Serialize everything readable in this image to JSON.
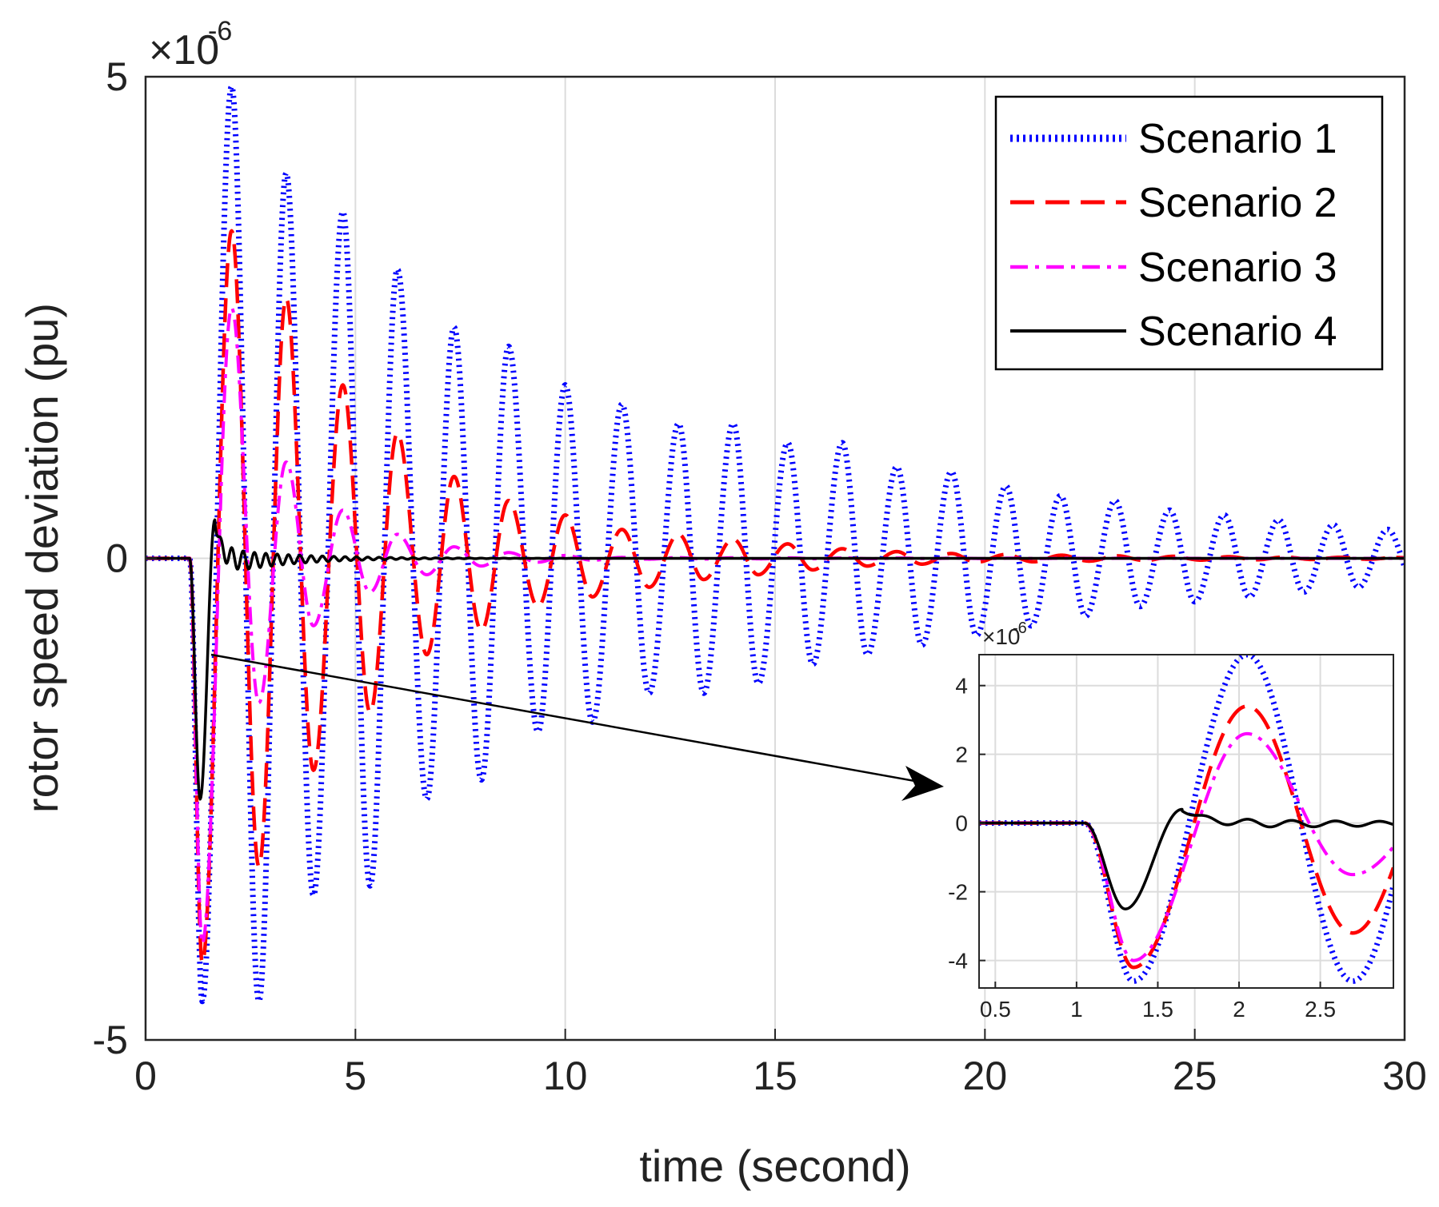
{
  "chart_data": [
    {
      "id": "main",
      "type": "line",
      "xlabel": "time (second)",
      "ylabel": "rotor speed deviation (pu)",
      "xlim": [
        0,
        30
      ],
      "ylim": [
        -5e-06,
        5e-06
      ],
      "y_exponent_label": "×10",
      "y_exponent_power": "-6",
      "x_ticks": [
        0,
        5,
        10,
        15,
        20,
        25,
        30
      ],
      "x_tick_labels": [
        "0",
        "5",
        "10",
        "15",
        "20",
        "25",
        "30"
      ],
      "y_ticks": [
        -5,
        0,
        5
      ],
      "y_tick_labels": [
        "-5",
        "0",
        "5"
      ],
      "grid": true,
      "legend_position": "top-right",
      "series": [
        {
          "name": "Scenario 1",
          "color": "#0000ff",
          "style": "dotted",
          "onset_time": 1.05,
          "period": 1.33,
          "peak_times": [
            2.05,
            3.35,
            4.7,
            6.0,
            7.35,
            8.65,
            10.0,
            11.35,
            12.7,
            14.0,
            15.3,
            16.6,
            17.9,
            19.2,
            20.5,
            21.8,
            23.1,
            24.4,
            25.7,
            27.0,
            28.3,
            29.6
          ],
          "peak_values": [
            4.9e-06,
            4e-06,
            3.6e-06,
            3e-06,
            2.4e-06,
            2.2e-06,
            1.8e-06,
            1.6e-06,
            1.4e-06,
            1.4e-06,
            1.2e-06,
            1.2e-06,
            9.5e-07,
            9e-07,
            7.5e-07,
            6.5e-07,
            6e-07,
            5e-07,
            4.5e-07,
            4e-07,
            3.5e-07,
            3e-07
          ],
          "trough_times": [
            1.35,
            2.7,
            4.0,
            5.35,
            6.7,
            8.0,
            9.35,
            10.65,
            12.0,
            13.3,
            14.6,
            15.9,
            17.2,
            18.5,
            19.8,
            21.1,
            22.4,
            23.7,
            25.0,
            26.3,
            27.6,
            28.9
          ],
          "trough_values": [
            -4.6e-06,
            -4.6e-06,
            -3.5e-06,
            -3.4e-06,
            -2.5e-06,
            -2.3e-06,
            -1.8e-06,
            -1.7e-06,
            -1.4e-06,
            -1.4e-06,
            -1.3e-06,
            -1.1e-06,
            -1e-06,
            -9e-07,
            -8e-07,
            -7e-07,
            -6e-07,
            -5e-07,
            -4.5e-07,
            -4e-07,
            -3.5e-07,
            -3e-07
          ]
        },
        {
          "name": "Scenario 2",
          "color": "#ff0000",
          "style": "dashed",
          "onset_time": 1.05,
          "period": 1.33,
          "peak_times": [
            2.05,
            3.35,
            4.7,
            6.0,
            7.35,
            8.65,
            10.0,
            11.35,
            12.7,
            14.0,
            15.3,
            16.6,
            17.9,
            19.2,
            20.5
          ],
          "peak_values": [
            3.4e-06,
            2.7e-06,
            1.8e-06,
            1.3e-06,
            8.5e-07,
            6e-07,
            4.5e-07,
            3e-07,
            2.5e-07,
            2e-07,
            1.5e-07,
            1e-07,
            7e-08,
            5e-08,
            4e-08
          ],
          "trough_times": [
            1.35,
            2.7,
            4.0,
            5.35,
            6.7,
            8.0,
            9.35,
            10.65,
            12.0,
            13.3,
            14.6,
            15.9,
            17.2,
            18.5,
            19.8
          ],
          "trough_values": [
            -4.2e-06,
            -3.2e-06,
            -2.2e-06,
            -1.6e-06,
            -1e-06,
            -7.5e-07,
            -5e-07,
            -4e-07,
            -3e-07,
            -2.2e-07,
            -1.7e-07,
            -1.2e-07,
            -8e-08,
            -6e-08,
            -4e-08
          ]
        },
        {
          "name": "Scenario 3",
          "color": "#ff00ff",
          "style": "dash-dot",
          "onset_time": 1.05,
          "period": 1.33,
          "peak_times": [
            2.05,
            3.35,
            4.7,
            6.0,
            7.35,
            8.65,
            10.0,
            11.35
          ],
          "peak_values": [
            2.6e-06,
            1e-06,
            5e-07,
            2.5e-07,
            1.2e-07,
            6e-08,
            3e-08,
            1e-08
          ],
          "trough_times": [
            1.35,
            2.7,
            4.0,
            5.35,
            6.7,
            8.0,
            9.35,
            10.65
          ],
          "trough_values": [
            -4e-06,
            -1.5e-06,
            -7e-07,
            -3.5e-07,
            -1.7e-07,
            -8e-08,
            -4e-08,
            -2e-08
          ]
        },
        {
          "name": "Scenario 4",
          "color": "#000000",
          "style": "solid",
          "onset_time": 1.05,
          "peak_times": [
            1.65
          ],
          "peak_values": [
            4e-07
          ],
          "trough_times": [
            1.3
          ],
          "trough_values": [
            -2.5e-06
          ],
          "ripple_amplitude": 1.5e-07,
          "ripple_period": 0.27,
          "ripple_decay": 1.6
        }
      ]
    },
    {
      "id": "inset",
      "type": "line",
      "xlim": [
        0.4,
        2.95
      ],
      "ylim": [
        -4.8e-06,
        4.9e-06
      ],
      "y_exponent_label": "×10",
      "y_exponent_power": "-6",
      "x_ticks": [
        0.5,
        1,
        1.5,
        2,
        2.5
      ],
      "x_tick_labels": [
        "0.5",
        "1",
        "1.5",
        "2",
        "2.5"
      ],
      "y_ticks": [
        -4,
        -2,
        0,
        2,
        4
      ],
      "y_tick_labels": [
        "-4",
        "-2",
        "0",
        "2",
        "4"
      ],
      "grid": true,
      "series_ref": "same four scenarios as main, zoomed on 0.4–2.95 s"
    }
  ]
}
